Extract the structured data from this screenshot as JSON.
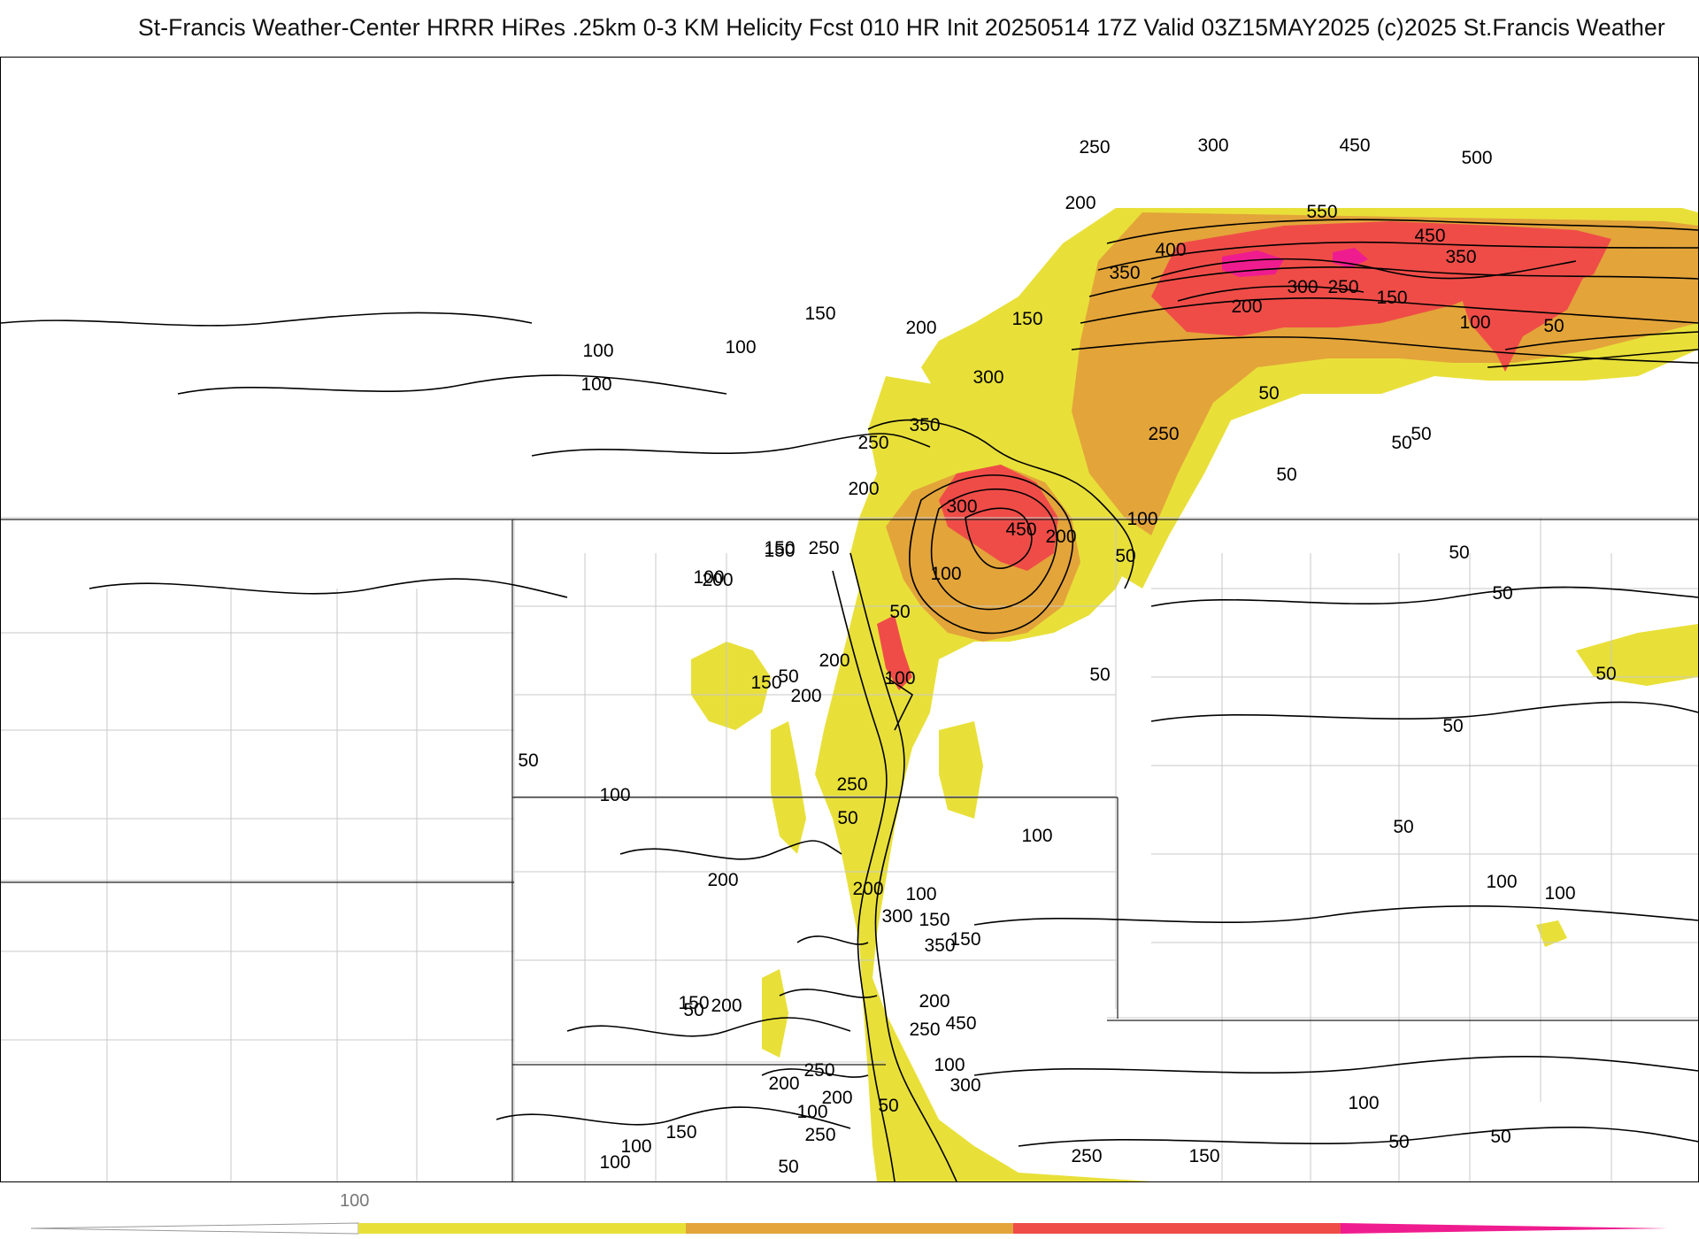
{
  "header": {
    "title": "St-Francis Weather-Center HRRR HiRes .25km 0-3 KM Helicity Fcst 010 HR Init 20250514 17Z  Valid 03Z15MAY2025    (c)2025 St.Francis Weather"
  },
  "map": {
    "field": "0-3 KM Helicity",
    "contour_labels": [
      {
        "text": "300"
      },
      {
        "text": "450"
      },
      {
        "text": "500"
      },
      {
        "text": "250"
      },
      {
        "text": "200"
      },
      {
        "text": "550"
      },
      {
        "text": "400"
      },
      {
        "text": "450"
      },
      {
        "text": "350"
      },
      {
        "text": "350"
      },
      {
        "text": "300"
      },
      {
        "text": "250"
      },
      {
        "text": "150"
      },
      {
        "text": "200"
      },
      {
        "text": "100"
      },
      {
        "text": "50"
      },
      {
        "text": "50"
      },
      {
        "text": "50"
      },
      {
        "text": "100"
      },
      {
        "text": "150"
      },
      {
        "text": "200"
      },
      {
        "text": "150"
      },
      {
        "text": "100"
      },
      {
        "text": "100"
      },
      {
        "text": "300"
      },
      {
        "text": "350"
      },
      {
        "text": "250"
      },
      {
        "text": "250"
      },
      {
        "text": "50"
      },
      {
        "text": "50"
      },
      {
        "text": "50"
      },
      {
        "text": "50"
      },
      {
        "text": "200"
      },
      {
        "text": "300"
      },
      {
        "text": "450"
      },
      {
        "text": "200"
      },
      {
        "text": "100"
      },
      {
        "text": "100"
      },
      {
        "text": "50"
      },
      {
        "text": "150"
      },
      {
        "text": "250"
      },
      {
        "text": "100"
      },
      {
        "text": "150"
      },
      {
        "text": "200"
      },
      {
        "text": "50"
      },
      {
        "text": "150"
      },
      {
        "text": "200"
      },
      {
        "text": "100"
      },
      {
        "text": "50"
      },
      {
        "text": "200"
      },
      {
        "text": "50"
      },
      {
        "text": "50"
      },
      {
        "text": "50"
      },
      {
        "text": "100"
      },
      {
        "text": "100"
      },
      {
        "text": "50"
      },
      {
        "text": "250"
      },
      {
        "text": "50"
      },
      {
        "text": "100"
      },
      {
        "text": "100"
      },
      {
        "text": "50"
      },
      {
        "text": "200"
      },
      {
        "text": "200"
      },
      {
        "text": "100"
      },
      {
        "text": "300"
      },
      {
        "text": "150"
      },
      {
        "text": "150"
      },
      {
        "text": "350"
      },
      {
        "text": "200"
      },
      {
        "text": "50"
      },
      {
        "text": "150"
      },
      {
        "text": "200"
      },
      {
        "text": "450"
      },
      {
        "text": "250"
      },
      {
        "text": "100"
      },
      {
        "text": "100"
      },
      {
        "text": "250"
      },
      {
        "text": "150"
      },
      {
        "text": "300"
      },
      {
        "text": "50"
      },
      {
        "text": "250"
      },
      {
        "text": "200"
      },
      {
        "text": "50"
      },
      {
        "text": "200"
      },
      {
        "text": "300"
      },
      {
        "text": "100"
      },
      {
        "text": "250"
      },
      {
        "text": "150"
      },
      {
        "text": "100"
      },
      {
        "text": "100"
      },
      {
        "text": "150"
      },
      {
        "text": "50"
      },
      {
        "text": "100"
      },
      {
        "text": "50"
      },
      {
        "text": "50"
      },
      {
        "text": "50"
      },
      {
        "text": "50"
      },
      {
        "text": "100"
      },
      {
        "text": "50"
      },
      {
        "text": "50"
      },
      {
        "text": "50"
      },
      {
        "text": "50"
      },
      {
        "text": "50"
      },
      {
        "text": "50"
      },
      {
        "text": "50"
      },
      {
        "text": "100"
      }
    ]
  },
  "colorbar": {
    "tick_label": "100",
    "colors": {
      "low": "#e8e039",
      "mid": "#e3a43a",
      "high": "#ef4c48",
      "extreme": "#ef1c8f",
      "top": "#d81bb8"
    }
  }
}
